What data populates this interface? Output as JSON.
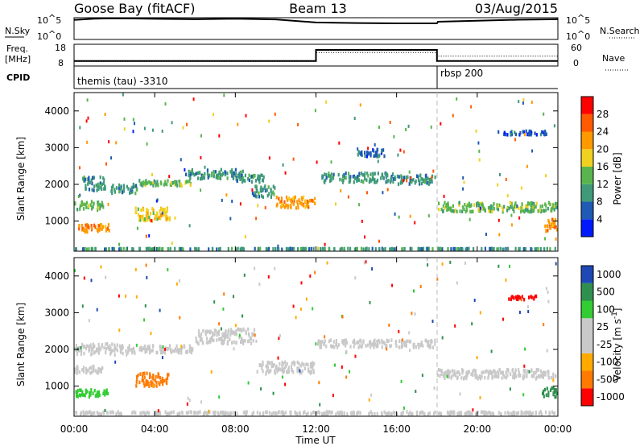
{
  "header": {
    "station": "Goose Bay (fitACF)",
    "beam": "Beam 13",
    "date": "03/Aug/2015"
  },
  "side_labels": {
    "nsky": "N.Sky",
    "nsearch": "N.Search",
    "freq_line1": "Freq.",
    "freq_line2": "[MHz]",
    "cpid": "CPID",
    "nave": "Nave",
    "noise_top": "10^5",
    "noise_bottom": "10^0",
    "freq_top": "18",
    "freq_bottom": "8",
    "nave_top": "60",
    "nave_bottom": "0"
  },
  "cpid_labels": [
    "themis (tau) -3310",
    "rbsp 200"
  ],
  "colors": {
    "power": [
      "#0019ff",
      "#1f5ab4",
      "#3f9a7a",
      "#58b54e",
      "#f0d020",
      "#ff9900",
      "#ff5a00",
      "#ff0000"
    ],
    "velocity": [
      "#ff0000",
      "#ff7a00",
      "#ffaa00",
      "#c9c9c9",
      "#c9c9c9",
      "#33cc33",
      "#2f8f4f",
      "#1e49b4"
    ]
  },
  "chart_data": [
    {
      "type": "line",
      "title": "Goose Bay (fitACF)  Beam 13  03/Aug/2015",
      "panel": "noise",
      "series": [
        {
          "name": "N.Sky",
          "scale": "log",
          "range": [
            1,
            100000
          ],
          "points": [
            [
              0.0,
              30000
            ],
            [
              1.0,
              60000
            ],
            [
              2.0,
              70000
            ],
            [
              3.0,
              65000
            ],
            [
              4.0,
              55000
            ],
            [
              6.0,
              45000
            ],
            [
              8.0,
              60000
            ],
            [
              10.0,
              40000
            ],
            [
              12.0,
              8000
            ],
            [
              14.0,
              6000
            ],
            [
              16.0,
              5000
            ],
            [
              18.0,
              5000
            ],
            [
              18.05,
              12000
            ],
            [
              20.0,
              20000
            ],
            [
              22.0,
              35000
            ],
            [
              24.0,
              45000
            ]
          ]
        },
        {
          "name": "N.Search",
          "scale": "log",
          "range": [
            1,
            100000
          ],
          "points": []
        }
      ]
    },
    {
      "type": "line",
      "panel": "frequency",
      "series": [
        {
          "name": "Freq. [MHz]",
          "range": [
            8,
            18
          ],
          "points": [
            [
              0.0,
              10.3
            ],
            [
              12.0,
              10.3
            ],
            [
              12.0,
              15.4
            ],
            [
              18.0,
              15.4
            ],
            [
              18.0,
              10.3
            ],
            [
              24.0,
              10.3
            ]
          ]
        },
        {
          "name": "Nave",
          "range": [
            0,
            60
          ],
          "points": [
            [
              0.0,
              13
            ],
            [
              12.0,
              13
            ],
            [
              12.0,
              37
            ],
            [
              18.0,
              37
            ],
            [
              18.0,
              27
            ],
            [
              24.0,
              27
            ]
          ]
        }
      ],
      "cpid": [
        {
          "start": 0,
          "end": 18,
          "label": "themis (tau) -3310"
        },
        {
          "start": 18,
          "end": 24,
          "label": "rbsp 200"
        }
      ]
    },
    {
      "type": "heatmap",
      "panel": "power",
      "ylabel": "Slant Range [km]",
      "xlabel": "Time UT",
      "x_ticks": [
        "00:00",
        "04:00",
        "08:00",
        "12:00",
        "16:00",
        "20:00",
        "00:00"
      ],
      "x_range_hours": [
        0,
        24
      ],
      "y_ticks": [
        1000,
        2000,
        3000,
        4000
      ],
      "ylim": [
        180,
        4500
      ],
      "colorbar": {
        "label": "Power [dB]",
        "ticks": [
          4,
          8,
          12,
          16,
          20,
          24,
          28
        ]
      },
      "regions": [
        {
          "t": [
            0.0,
            1.5
          ],
          "r": [
            1250,
            1600
          ],
          "v": 12
        },
        {
          "t": [
            0.0,
            1.8
          ],
          "r": [
            650,
            950
          ],
          "v": 20
        },
        {
          "t": [
            0.4,
            1.6
          ],
          "r": [
            1750,
            2250
          ],
          "v": 8
        },
        {
          "t": [
            1.8,
            3.2
          ],
          "r": [
            1700,
            2050
          ],
          "v": 8
        },
        {
          "t": [
            3.0,
            4.8
          ],
          "r": [
            950,
            1400
          ],
          "v": 16
        },
        {
          "t": [
            3.2,
            6.0
          ],
          "r": [
            1900,
            2150
          ],
          "v": 12
        },
        {
          "t": [
            5.5,
            8.5
          ],
          "r": [
            2100,
            2450
          ],
          "v": 8
        },
        {
          "t": [
            8.0,
            9.5
          ],
          "r": [
            2000,
            2300
          ],
          "v": 8
        },
        {
          "t": [
            8.8,
            10.0
          ],
          "r": [
            1600,
            2000
          ],
          "v": 8
        },
        {
          "t": [
            10.0,
            12.0
          ],
          "r": [
            1300,
            1700
          ],
          "v": 20
        },
        {
          "t": [
            12.2,
            16.0
          ],
          "r": [
            2000,
            2350
          ],
          "v": 8
        },
        {
          "t": [
            16.0,
            18.0
          ],
          "r": [
            1950,
            2300
          ],
          "v": 8
        },
        {
          "t": [
            18.0,
            24.0
          ],
          "r": [
            1200,
            1550
          ],
          "v": 12
        },
        {
          "t": [
            14.0,
            15.5
          ],
          "r": [
            2700,
            3000
          ],
          "v": 4
        },
        {
          "t": [
            21.0,
            23.5
          ],
          "r": [
            3300,
            3500
          ],
          "v": 4
        },
        {
          "t": [
            0.0,
            24.0
          ],
          "r": [
            180,
            300
          ],
          "v": 8
        },
        {
          "t": [
            23.3,
            24.0
          ],
          "r": [
            650,
            1100
          ],
          "v": 20
        }
      ]
    },
    {
      "type": "heatmap",
      "panel": "velocity",
      "ylabel": "Slant Range [km]",
      "xlabel": "Time UT",
      "x_ticks": [
        "00:00",
        "04:00",
        "08:00",
        "12:00",
        "16:00",
        "20:00",
        "00:00"
      ],
      "x_range_hours": [
        0,
        24
      ],
      "y_ticks": [
        1000,
        2000,
        3000,
        4000
      ],
      "ylim": [
        180,
        4500
      ],
      "colorbar": {
        "label": "Velocity [m s^-1]",
        "ticks": [
          -1000,
          -500,
          -100,
          -25,
          25,
          100,
          500,
          1000
        ]
      },
      "regions": [
        {
          "t": [
            0.0,
            2.5
          ],
          "r": [
            1800,
            2200
          ],
          "v": 0
        },
        {
          "t": [
            0.0,
            1.6
          ],
          "r": [
            1300,
            1600
          ],
          "v": 0
        },
        {
          "t": [
            0.0,
            1.8
          ],
          "r": [
            650,
            950
          ],
          "v": 150
        },
        {
          "t": [
            2.5,
            6.0
          ],
          "r": [
            1850,
            2150
          ],
          "v": 0
        },
        {
          "t": [
            3.0,
            4.8
          ],
          "r": [
            950,
            1400
          ],
          "v": -300
        },
        {
          "t": [
            6.0,
            9.0
          ],
          "r": [
            2100,
            2600
          ],
          "v": 0
        },
        {
          "t": [
            9.0,
            12.0
          ],
          "r": [
            1300,
            1700
          ],
          "v": 0
        },
        {
          "t": [
            12.0,
            18.0
          ],
          "r": [
            2000,
            2300
          ],
          "v": 0
        },
        {
          "t": [
            18.0,
            24.0
          ],
          "r": [
            1150,
            1500
          ],
          "v": 0
        },
        {
          "t": [
            21.5,
            23.0
          ],
          "r": [
            3300,
            3500
          ],
          "v": -600
        },
        {
          "t": [
            0.0,
            24.0
          ],
          "r": [
            180,
            350
          ],
          "v": 50
        },
        {
          "t": [
            23.2,
            24.0
          ],
          "r": [
            650,
            1000
          ],
          "v": 600
        }
      ]
    }
  ],
  "ui": {
    "power_ylabel": "Slant Range [km]",
    "velocity_ylabel": "Slant Range [km]",
    "power_cb_label": "Power [dB]",
    "velocity_cb_label": "Velocity [m s",
    "velocity_cb_sup": "-1",
    "velocity_cb_close": "]",
    "xlabel": "Time UT"
  }
}
